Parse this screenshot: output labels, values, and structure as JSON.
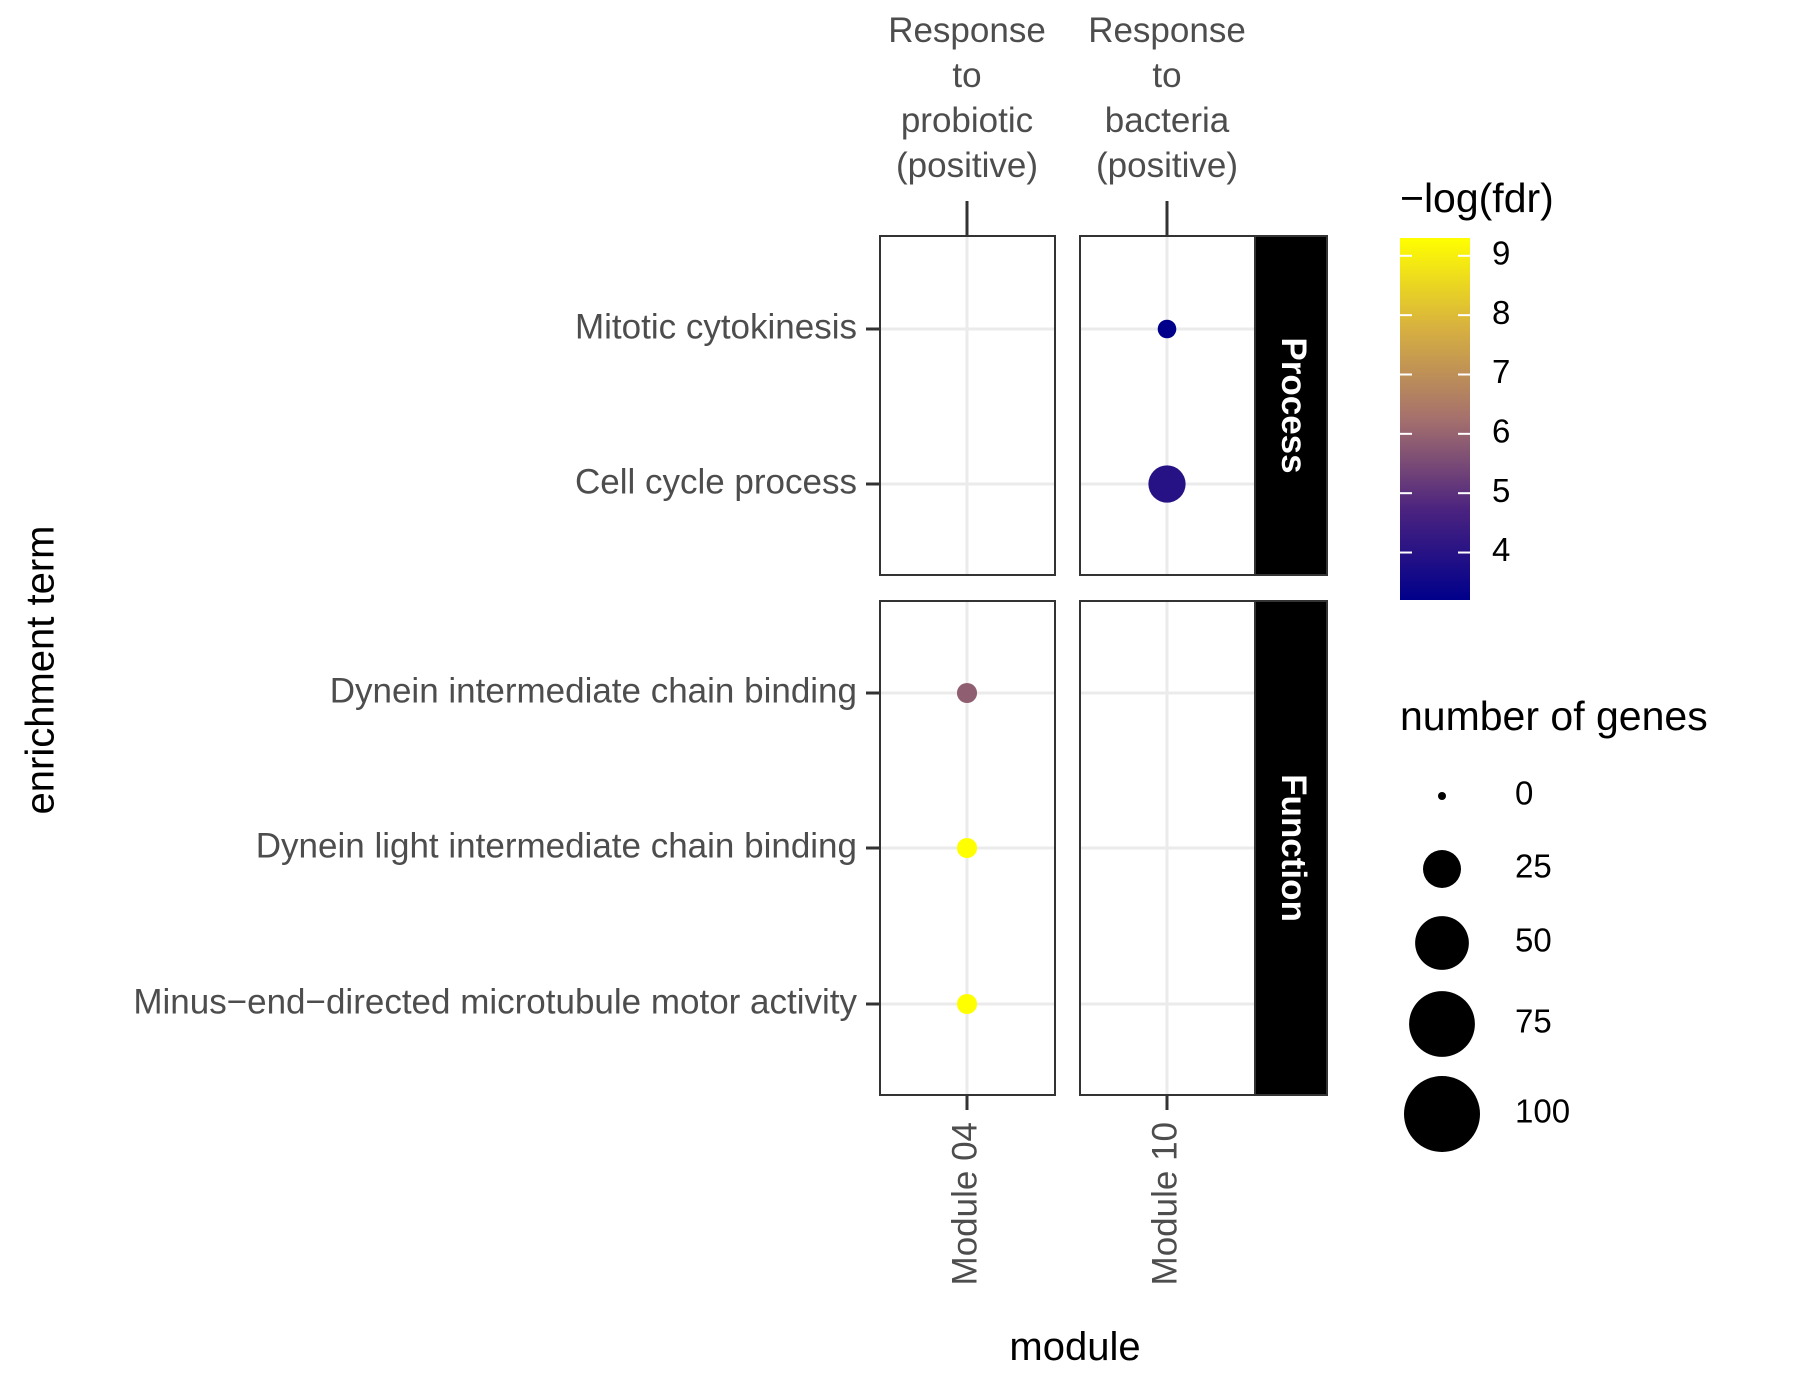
{
  "chart_data": {
    "type": "scatter",
    "xlabel": "module",
    "ylabel": "enrichment term",
    "top_labels": [
      [
        "Response",
        "to",
        "probiotic",
        "(positive)"
      ],
      [
        "Response",
        "to",
        "bacteria",
        "(positive)"
      ]
    ],
    "modules": [
      "Module 04",
      "Module  10"
    ],
    "facets": [
      {
        "name": "Process",
        "terms": [
          "Mitotic cytokinesis",
          "Cell cycle process"
        ]
      },
      {
        "name": "Function",
        "terms": [
          "Dynein intermediate chain binding",
          "Dynein light intermediate chain binding",
          "Minus−end−directed microtubule motor activity"
        ]
      }
    ],
    "points": [
      {
        "module": "Module  10",
        "term": "Mitotic cytokinesis",
        "neg_log_fdr": 3.2,
        "genes": 6
      },
      {
        "module": "Module  10",
        "term": "Cell cycle process",
        "neg_log_fdr": 4.0,
        "genes": 24
      },
      {
        "module": "Module 04",
        "term": "Dynein intermediate chain binding",
        "neg_log_fdr": 5.9,
        "genes": 7
      },
      {
        "module": "Module 04",
        "term": "Dynein light intermediate chain binding",
        "neg_log_fdr": 9.3,
        "genes": 7
      },
      {
        "module": "Module 04",
        "term": "Minus−end−directed microtubule motor activity",
        "neg_log_fdr": 9.3,
        "genes": 7
      }
    ],
    "color_legend": {
      "title": "−log(fdr)",
      "ticks": [
        9,
        8,
        7,
        6,
        5,
        4
      ],
      "range": [
        3.2,
        9.3
      ],
      "low_color": "#00008B",
      "high_color": "#FFFF00"
    },
    "size_legend": {
      "title": "number of genes",
      "breaks": [
        0,
        25,
        50,
        75,
        100
      ]
    },
    "grid": true
  }
}
